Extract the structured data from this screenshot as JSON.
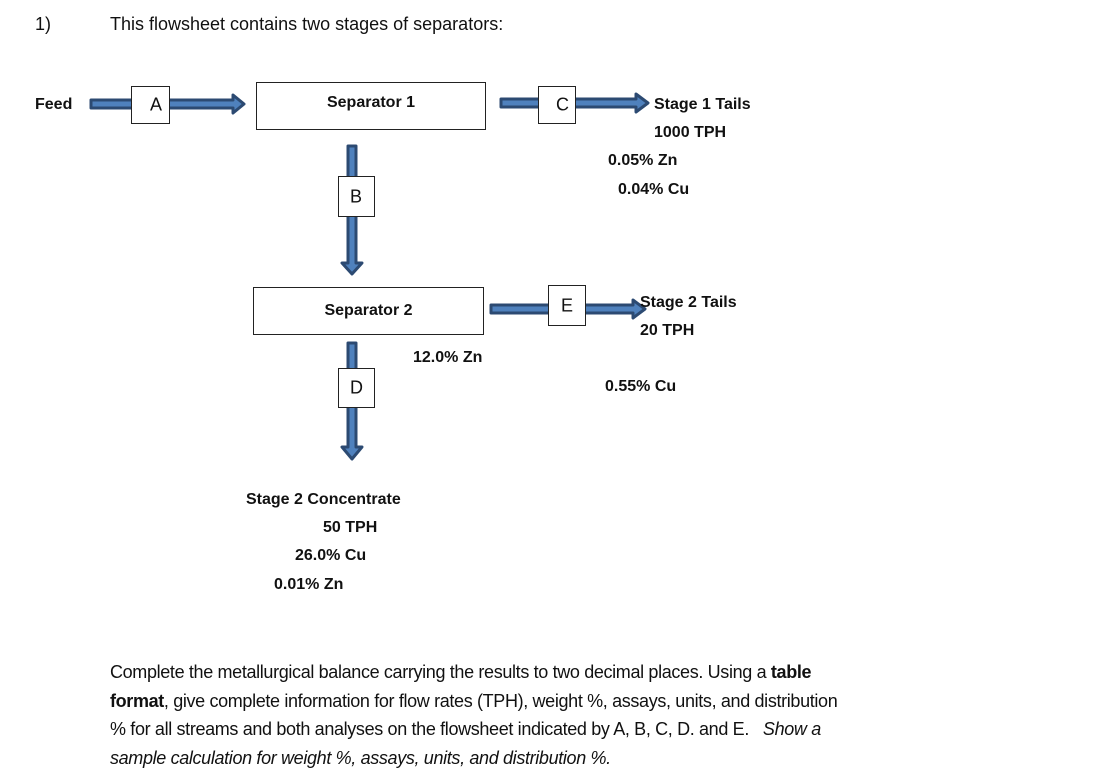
{
  "question": {
    "number": "1)",
    "intro": "This flowsheet contains two stages of separators:"
  },
  "flowsheet": {
    "feed_label": "Feed",
    "separator1": "Separator 1",
    "separator2": "Separator 2",
    "streams": {
      "A": "A",
      "B": "B",
      "C": "C",
      "D": "D",
      "E": "E"
    },
    "stage1_tails": {
      "title": "Stage 1 Tails",
      "rate": "1000 TPH",
      "zn": "0.05% Zn",
      "cu": "0.04% Cu"
    },
    "stage2_tails": {
      "title": "Stage 2 Tails",
      "rate": "20 TPH",
      "cu": "0.55% Cu",
      "zn": "12.0% Zn"
    },
    "stage2_concentrate": {
      "title": "Stage 2 Concentrate",
      "rate": "50 TPH",
      "cu": "26.0% Cu",
      "zn": "0.01% Zn"
    },
    "colors": {
      "arrow_fill": "#4f81bd",
      "arrow_outline": "#2c4a72"
    }
  },
  "instructions": {
    "line1": "Complete the metallurgical balance carrying the results to two decimal places. Using a ",
    "line1_bold": "table",
    "line2_bold": "format",
    "line2": ", give complete information for flow rates (TPH), weight %, assays, units, and distribution",
    "line3": "% for all streams and both analyses on the flowsheet indicated by A, B, C, D. and E.   ",
    "line3_italic": "Show a",
    "line4_italic": "sample calculation for weight %, assays, units, and distribution %."
  }
}
